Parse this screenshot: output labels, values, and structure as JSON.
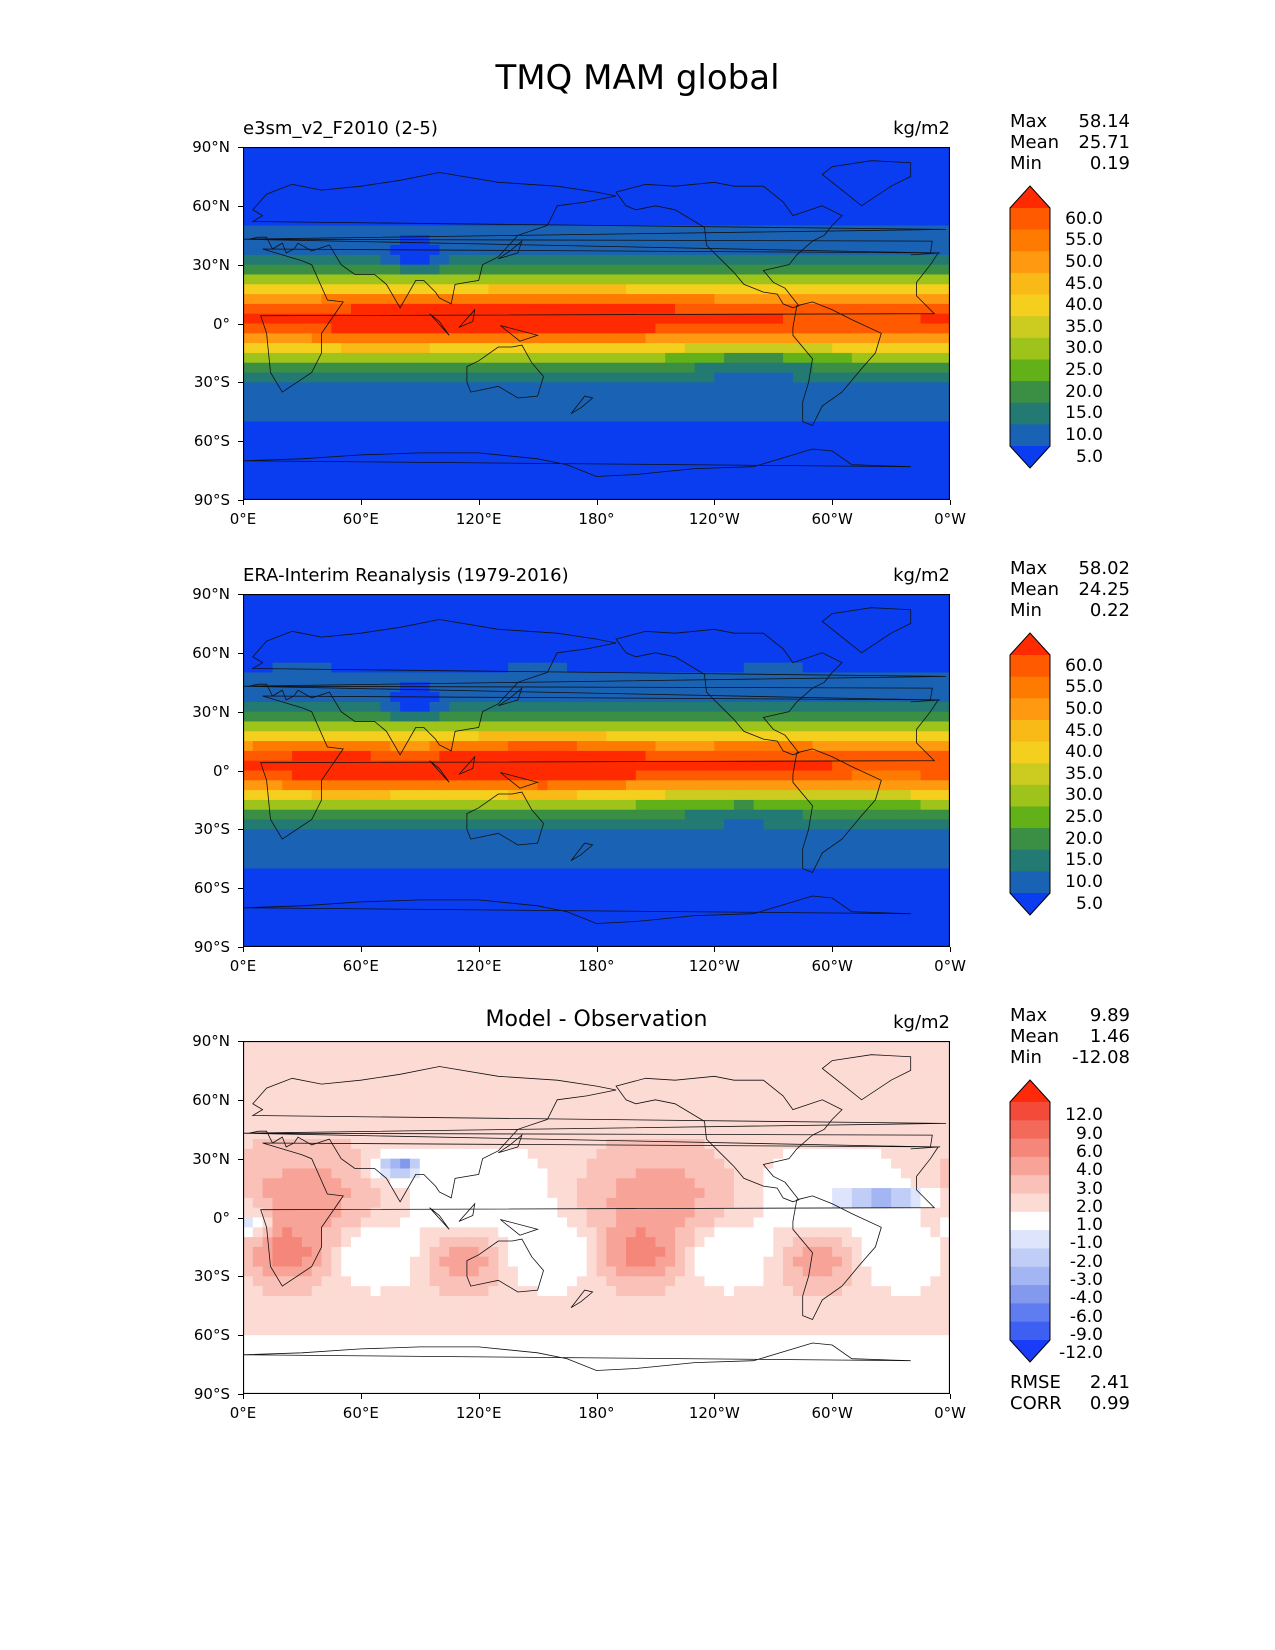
{
  "title": "TMQ MAM global",
  "lat_ticks": [
    "90°N",
    "60°N",
    "30°N",
    "0°",
    "30°S",
    "60°S",
    "90°S"
  ],
  "lon_ticks": [
    "0°E",
    "60°E",
    "120°E",
    "180°",
    "120°W",
    "60°W",
    "0°W"
  ],
  "panels": [
    {
      "subtitle": "e3sm_v2_F2010 (2-5)",
      "title": "",
      "units": "kg/m2",
      "stats": [
        {
          "label": "Max",
          "value": "58.14"
        },
        {
          "label": "Mean",
          "value": "25.71"
        },
        {
          "label": "Min",
          "value": "0.19"
        }
      ],
      "colorbar_labels": [
        "60.0",
        "55.0",
        "50.0",
        "45.0",
        "40.0",
        "35.0",
        "30.0",
        "25.0",
        "20.0",
        "15.0",
        "10.0",
        "5.0"
      ],
      "colorbar_colors": [
        "#ff2a00",
        "#ff5a00",
        "#ff7a00",
        "#ff9a10",
        "#f9b916",
        "#f5cf1e",
        "#cccc20",
        "#9ec41c",
        "#63b118",
        "#3a8f44",
        "#237a72",
        "#1a62b4",
        "#0a3cf0"
      ]
    },
    {
      "subtitle": "ERA-Interim Reanalysis (1979-2016)",
      "title": "",
      "units": "kg/m2",
      "stats": [
        {
          "label": "Max",
          "value": "58.02"
        },
        {
          "label": "Mean",
          "value": "24.25"
        },
        {
          "label": "Min",
          "value": "0.22"
        }
      ],
      "colorbar_labels": [
        "60.0",
        "55.0",
        "50.0",
        "45.0",
        "40.0",
        "35.0",
        "30.0",
        "25.0",
        "20.0",
        "15.0",
        "10.0",
        "5.0"
      ],
      "colorbar_colors": [
        "#ff2a00",
        "#ff5a00",
        "#ff7a00",
        "#ff9a10",
        "#f9b916",
        "#f5cf1e",
        "#cccc20",
        "#9ec41c",
        "#63b118",
        "#3a8f44",
        "#237a72",
        "#1a62b4",
        "#0a3cf0"
      ]
    },
    {
      "subtitle": "",
      "title": "Model - Observation",
      "units": "kg/m2",
      "stats": [
        {
          "label": "Max",
          "value": "9.89"
        },
        {
          "label": "Mean",
          "value": "1.46"
        },
        {
          "label": "Min",
          "value": "-12.08"
        }
      ],
      "colorbar_labels": [
        "12.0",
        "9.0",
        "6.0",
        "4.0",
        "3.0",
        "2.0",
        "1.0",
        "-1.0",
        "-2.0",
        "-3.0",
        "-4.0",
        "-6.0",
        "-9.0",
        "-12.0"
      ],
      "colorbar_colors": [
        "#ff2a0a",
        "#f44a3a",
        "#f46a5a",
        "#f5877a",
        "#f8a398",
        "#fac1b8",
        "#fddbd5",
        "#ffffff",
        "#dde4fb",
        "#c0cdf6",
        "#a3b5f2",
        "#8399ee",
        "#5f7cf0",
        "#3d60f3",
        "#1a3cf8"
      ],
      "metrics": [
        {
          "label": "RMSE",
          "value": "2.41"
        },
        {
          "label": "CORR",
          "value": "0.99"
        }
      ]
    }
  ]
}
